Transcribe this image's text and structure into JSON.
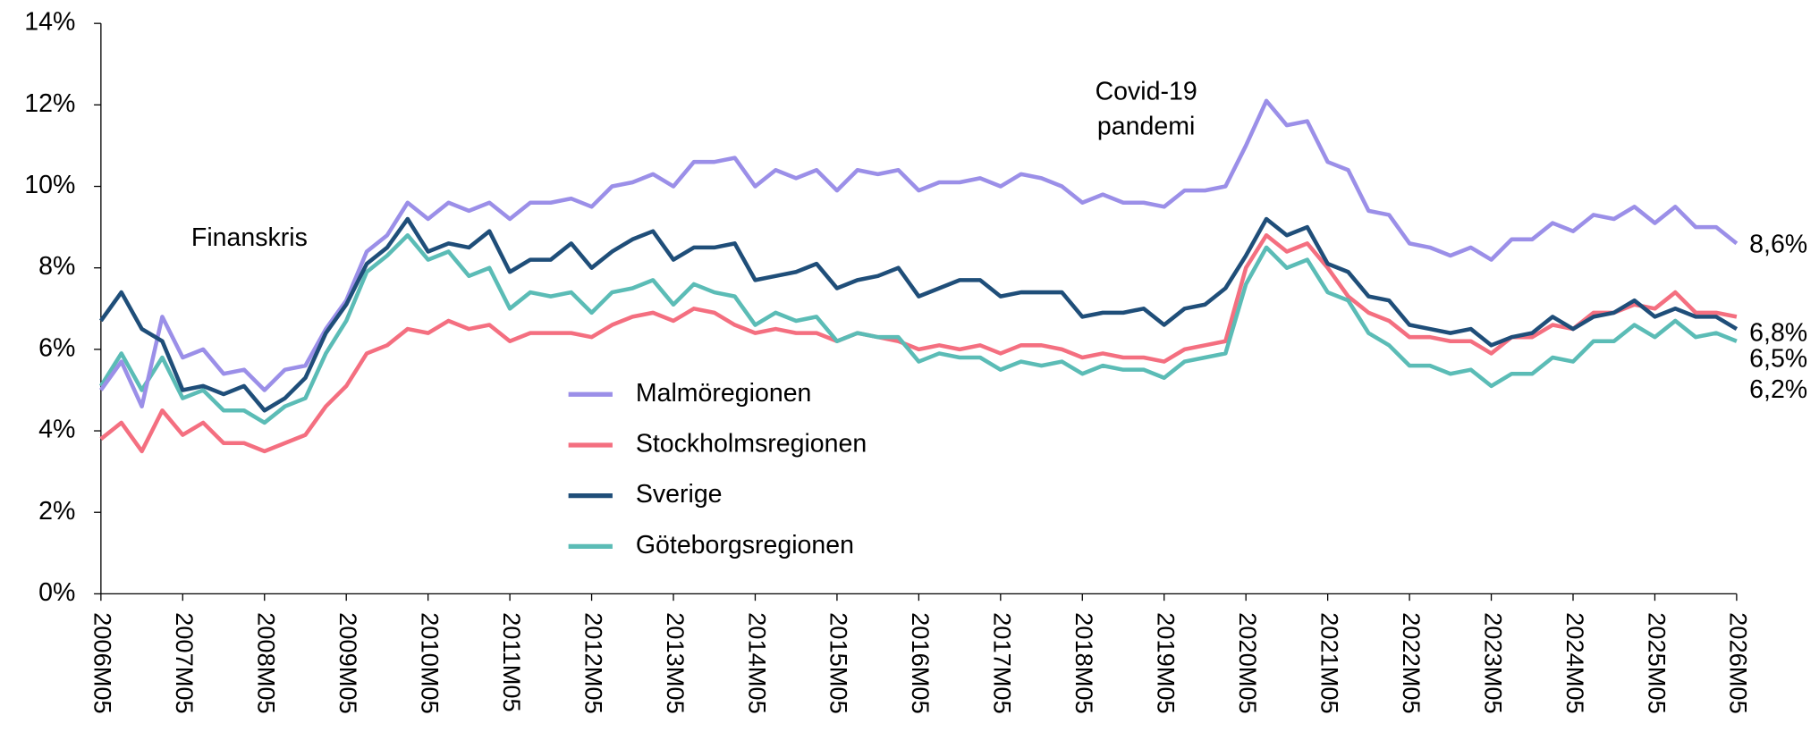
{
  "chart_data": {
    "type": "line",
    "categories": [
      "2006M05",
      null,
      null,
      null,
      "2007M05",
      null,
      null,
      null,
      "2008M05",
      null,
      null,
      null,
      "2009M05",
      null,
      null,
      null,
      "2010M05",
      null,
      null,
      null,
      "2011M05",
      null,
      null,
      null,
      "2012M05",
      null,
      null,
      null,
      "2013M05",
      null,
      null,
      null,
      "2014M05",
      null,
      null,
      null,
      "2015M05",
      null,
      null,
      null,
      "2016M05",
      null,
      null,
      null,
      "2017M05",
      null,
      null,
      null,
      "2018M05",
      null,
      null,
      null,
      "2019M05",
      null,
      null,
      null,
      "2020M05",
      null,
      null,
      null,
      "2021M05",
      null,
      null,
      null,
      "2022M05",
      null,
      null,
      null,
      "2023M05",
      null,
      null,
      null,
      "2024M05",
      null,
      null,
      null,
      "2025M05",
      null,
      null,
      null,
      "2026M05"
    ],
    "series": [
      {
        "name": "Malmöregionen",
        "color": "#9b8fe8",
        "end_label": "8,6%",
        "values": [
          5.0,
          5.7,
          4.6,
          6.8,
          5.8,
          6.0,
          5.4,
          5.5,
          5.0,
          5.5,
          5.6,
          6.5,
          7.2,
          8.4,
          8.8,
          9.6,
          9.2,
          9.6,
          9.4,
          9.6,
          9.2,
          9.6,
          9.6,
          9.7,
          9.5,
          10.0,
          10.1,
          10.3,
          10.0,
          10.6,
          10.6,
          10.7,
          10.0,
          10.4,
          10.2,
          10.4,
          9.9,
          10.4,
          10.3,
          10.4,
          9.9,
          10.1,
          10.1,
          10.2,
          10.0,
          10.3,
          10.2,
          10.0,
          9.6,
          9.8,
          9.6,
          9.6,
          9.5,
          9.9,
          9.9,
          10.0,
          11.0,
          12.1,
          11.5,
          11.6,
          10.6,
          10.4,
          9.4,
          9.3,
          8.6,
          8.5,
          8.3,
          8.5,
          8.2,
          8.7,
          8.7,
          9.1,
          8.9,
          9.3,
          9.2,
          9.5,
          9.1,
          9.5,
          9.0,
          9.0,
          8.6
        ]
      },
      {
        "name": "Stockholmsregionen",
        "color": "#f46f80",
        "end_label": "6,8%",
        "values": [
          3.8,
          4.2,
          3.5,
          4.5,
          3.9,
          4.2,
          3.7,
          3.7,
          3.5,
          3.7,
          3.9,
          4.6,
          5.1,
          5.9,
          6.1,
          6.5,
          6.4,
          6.7,
          6.5,
          6.6,
          6.2,
          6.4,
          6.4,
          6.4,
          6.3,
          6.6,
          6.8,
          6.9,
          6.7,
          7.0,
          6.9,
          6.6,
          6.4,
          6.5,
          6.4,
          6.4,
          6.2,
          6.4,
          6.3,
          6.2,
          6.0,
          6.1,
          6.0,
          6.1,
          5.9,
          6.1,
          6.1,
          6.0,
          5.8,
          5.9,
          5.8,
          5.8,
          5.7,
          6.0,
          6.1,
          6.2,
          8.0,
          8.8,
          8.4,
          8.6,
          8.0,
          7.3,
          6.9,
          6.7,
          6.3,
          6.3,
          6.2,
          6.2,
          5.9,
          6.3,
          6.3,
          6.6,
          6.5,
          6.9,
          6.9,
          7.1,
          7.0,
          7.4,
          6.9,
          6.9,
          6.8
        ]
      },
      {
        "name": "Sverige",
        "color": "#1f4e79",
        "end_label": "6,5%",
        "values": [
          6.7,
          7.4,
          6.5,
          6.2,
          5.0,
          5.1,
          4.9,
          5.1,
          4.5,
          4.8,
          5.3,
          6.4,
          7.1,
          8.1,
          8.5,
          9.2,
          8.4,
          8.6,
          8.5,
          8.9,
          7.9,
          8.2,
          8.2,
          8.6,
          8.0,
          8.4,
          8.7,
          8.9,
          8.2,
          8.5,
          8.5,
          8.6,
          7.7,
          7.8,
          7.9,
          8.1,
          7.5,
          7.7,
          7.8,
          8.0,
          7.3,
          7.5,
          7.7,
          7.7,
          7.3,
          7.4,
          7.4,
          7.4,
          6.8,
          6.9,
          6.9,
          7.0,
          6.6,
          7.0,
          7.1,
          7.5,
          8.3,
          9.2,
          8.8,
          9.0,
          8.1,
          7.9,
          7.3,
          7.2,
          6.6,
          6.5,
          6.4,
          6.5,
          6.1,
          6.3,
          6.4,
          6.8,
          6.5,
          6.8,
          6.9,
          7.2,
          6.8,
          7.0,
          6.8,
          6.8,
          6.5
        ]
      },
      {
        "name": "Göteborgsregionen",
        "color": "#5bbcb6",
        "end_label": "6,2%",
        "values": [
          5.1,
          5.9,
          5.0,
          5.8,
          4.8,
          5.0,
          4.5,
          4.5,
          4.2,
          4.6,
          4.8,
          5.9,
          6.7,
          7.9,
          8.3,
          8.8,
          8.2,
          8.4,
          7.8,
          8.0,
          7.0,
          7.4,
          7.3,
          7.4,
          6.9,
          7.4,
          7.5,
          7.7,
          7.1,
          7.6,
          7.4,
          7.3,
          6.6,
          6.9,
          6.7,
          6.8,
          6.2,
          6.4,
          6.3,
          6.3,
          5.7,
          5.9,
          5.8,
          5.8,
          5.5,
          5.7,
          5.6,
          5.7,
          5.4,
          5.6,
          5.5,
          5.5,
          5.3,
          5.7,
          5.8,
          5.9,
          7.6,
          8.5,
          8.0,
          8.2,
          7.4,
          7.2,
          6.4,
          6.1,
          5.6,
          5.6,
          5.4,
          5.5,
          5.1,
          5.4,
          5.4,
          5.8,
          5.7,
          6.2,
          6.2,
          6.6,
          6.3,
          6.7,
          6.3,
          6.4,
          6.2
        ]
      }
    ],
    "ylim": [
      0,
      14
    ],
    "yticks": [
      {
        "value": 0,
        "label": "0%"
      },
      {
        "value": 2,
        "label": "2%"
      },
      {
        "value": 4,
        "label": "4%"
      },
      {
        "value": 6,
        "label": "6%"
      },
      {
        "value": 8,
        "label": "8%"
      },
      {
        "value": 10,
        "label": "10%"
      },
      {
        "value": 12,
        "label": "12%"
      },
      {
        "value": 14,
        "label": "14%"
      }
    ],
    "annotations": [
      {
        "lines": [
          "Finanskris"
        ]
      },
      {
        "lines": [
          "Covid-19",
          "pandemi"
        ]
      }
    ],
    "grid": false
  }
}
